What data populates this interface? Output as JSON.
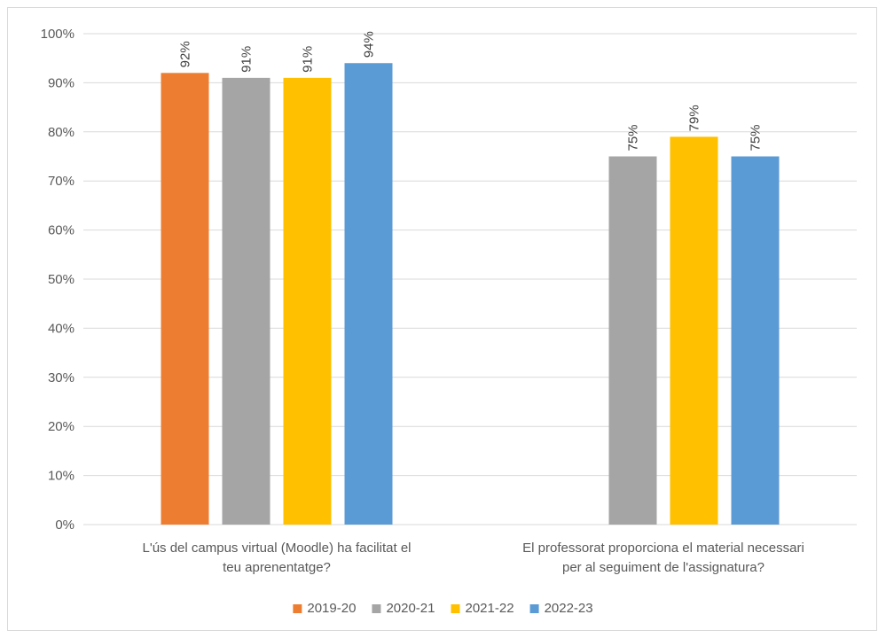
{
  "chart_data": {
    "type": "bar",
    "categories": [
      [
        "L'ús del campus virtual (Moodle) ha facilitat el",
        "teu aprenentatge?"
      ],
      [
        "El professorat proporciona el material necessari",
        "per al seguiment de l'assignatura?"
      ]
    ],
    "series": [
      {
        "name": "2019-20",
        "color": "#ED7D31",
        "values": [
          0.92,
          null
        ],
        "labels": [
          "92%",
          ""
        ]
      },
      {
        "name": "2020-21",
        "color": "#A5A5A5",
        "values": [
          0.91,
          0.75
        ],
        "labels": [
          "91%",
          "75%"
        ]
      },
      {
        "name": "2021-22",
        "color": "#FFC000",
        "values": [
          0.91,
          0.79
        ],
        "labels": [
          "91%",
          "79%"
        ]
      },
      {
        "name": "2022-23",
        "color": "#5B9BD5",
        "values": [
          0.94,
          0.75
        ],
        "labels": [
          "94%",
          "75%"
        ]
      }
    ],
    "ylim": [
      0,
      1
    ],
    "yticks": [
      "0%",
      "10%",
      "20%",
      "30%",
      "40%",
      "50%",
      "60%",
      "70%",
      "80%",
      "90%",
      "100%"
    ],
    "grid": true,
    "legend": "bottom",
    "title": "",
    "xlabel": "",
    "ylabel": ""
  }
}
